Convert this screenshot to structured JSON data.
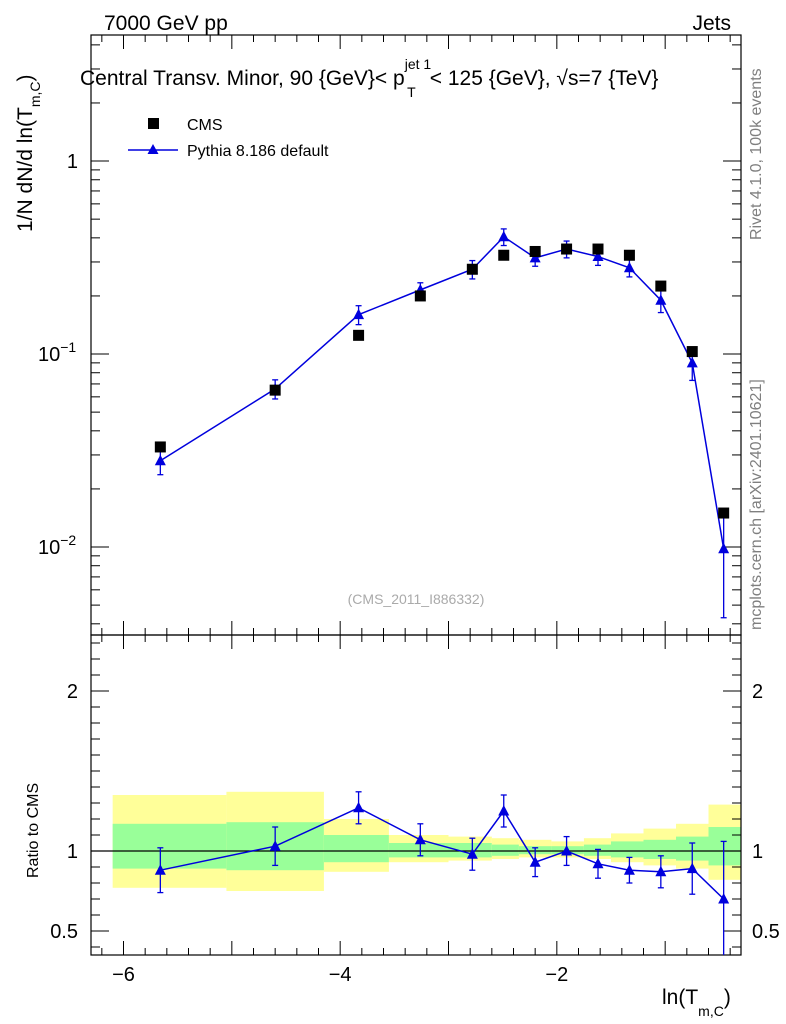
{
  "header": {
    "energy_label": "7000 GeV pp",
    "process_label": "Jets",
    "plot_title": "Central Transv. Minor, 90 {GeV}< p",
    "plot_title_sup": "jet 1",
    "plot_title_sub": "T",
    "plot_title_tail": "< 125 {GeV}, √s=7 {TeV}",
    "side_label_top": "Rivet 4.1.0,  100k events",
    "side_label_bottom": "mcplots.cern.ch [arXiv:2401.10621]",
    "analysis_id": "(CMS_2011_I886332)"
  },
  "colors": {
    "data": "#000000",
    "mc": "#0000dd",
    "band_outer": "#ffff99",
    "band_inner": "#99ff99"
  },
  "chart_data": [
    {
      "type": "scatter",
      "title": "Central Transv. Minor",
      "ylabel_prefix": "1/N    dN/d ln(T",
      "ylabel_sub": "m,C",
      "ylabel_suffix": ")",
      "yscale": "log",
      "ylim": [
        0.0035,
        4.5
      ],
      "xlim": [
        -6.3,
        -0.3
      ],
      "yticks": [
        {
          "value": 0.01,
          "base": "10",
          "exp": "−2"
        },
        {
          "value": 0.1,
          "base": "10",
          "exp": "−1"
        },
        {
          "value": 1,
          "base": "1",
          "exp": ""
        }
      ],
      "legend": {
        "position": "top-left",
        "data_label": "CMS",
        "mc_label": "Pythia 8.186 default"
      },
      "series": [
        {
          "name": "CMS",
          "x": [
            -5.66,
            -4.6,
            -3.83,
            -3.26,
            -2.78,
            -2.49,
            -2.2,
            -1.91,
            -1.62,
            -1.33,
            -1.04,
            -0.75,
            -0.46
          ],
          "y": [
            0.033,
            0.065,
            0.125,
            0.2,
            0.275,
            0.325,
            0.34,
            0.35,
            0.35,
            0.325,
            0.225,
            0.103,
            0.015
          ]
        },
        {
          "name": "Pythia 8.186 default",
          "x": [
            -5.66,
            -4.6,
            -3.83,
            -3.26,
            -2.78,
            -2.49,
            -2.2,
            -1.91,
            -1.62,
            -1.33,
            -1.04,
            -0.75,
            -0.46
          ],
          "y": [
            0.028,
            0.066,
            0.16,
            0.215,
            0.275,
            0.405,
            0.315,
            0.35,
            0.32,
            0.28,
            0.19,
            0.09,
            0.0098
          ],
          "err_low": [
            0.0043,
            0.0075,
            0.018,
            0.019,
            0.03,
            0.04,
            0.03,
            0.035,
            0.032,
            0.029,
            0.026,
            0.017,
            0.0055
          ],
          "err_high": [
            0.0043,
            0.0075,
            0.018,
            0.019,
            0.03,
            0.04,
            0.03,
            0.035,
            0.032,
            0.029,
            0.026,
            0.017,
            0.0055
          ]
        }
      ]
    },
    {
      "type": "scatter",
      "title": "Ratio",
      "ylabel": "Ratio to CMS",
      "xlabel_prefix": "ln(T",
      "xlabel_sub": "m,C",
      "xlabel_suffix": ")",
      "xlim": [
        -6.3,
        -0.3
      ],
      "ylim": [
        0.35,
        2.35
      ],
      "yticks": [
        0.5,
        1,
        2
      ],
      "xticks": [
        -6,
        -4,
        -2
      ],
      "xtick_labels": [
        "−6",
        "−4",
        "−2"
      ],
      "band_edges": [
        -6.1,
        -5.05,
        -4.15,
        -3.55,
        -3.0,
        -2.6,
        -2.35,
        -2.05,
        -1.75,
        -1.5,
        -1.2,
        -0.9,
        -0.6,
        -0.3
      ],
      "band_outer": [
        [
          0.77,
          1.35
        ],
        [
          0.75,
          1.37
        ],
        [
          0.87,
          1.2
        ],
        [
          0.93,
          1.1
        ],
        [
          0.94,
          1.09
        ],
        [
          0.95,
          1.08
        ],
        [
          0.96,
          1.07
        ],
        [
          0.96,
          1.06
        ],
        [
          0.95,
          1.08
        ],
        [
          0.93,
          1.11
        ],
        [
          0.91,
          1.14
        ],
        [
          0.89,
          1.17
        ],
        [
          0.82,
          1.29
        ]
      ],
      "band_inner": [
        [
          0.89,
          1.17
        ],
        [
          0.88,
          1.18
        ],
        [
          0.93,
          1.1
        ],
        [
          0.96,
          1.05
        ],
        [
          0.96,
          1.05
        ],
        [
          0.97,
          1.04
        ],
        [
          0.98,
          1.03
        ],
        [
          0.98,
          1.03
        ],
        [
          0.97,
          1.04
        ],
        [
          0.96,
          1.06
        ],
        [
          0.95,
          1.07
        ],
        [
          0.94,
          1.09
        ],
        [
          0.91,
          1.15
        ]
      ],
      "series": [
        {
          "name": "Pythia 8.186 default / CMS",
          "x": [
            -5.66,
            -4.6,
            -3.83,
            -3.26,
            -2.78,
            -2.49,
            -2.2,
            -1.91,
            -1.62,
            -1.33,
            -1.04,
            -0.75,
            -0.46
          ],
          "y": [
            0.88,
            1.03,
            1.27,
            1.07,
            0.98,
            1.25,
            0.93,
            1.0,
            0.92,
            0.88,
            0.87,
            0.89,
            0.7
          ],
          "err_low": [
            0.14,
            0.12,
            0.1,
            0.1,
            0.1,
            0.1,
            0.09,
            0.09,
            0.09,
            0.08,
            0.1,
            0.16,
            0.38
          ],
          "err_high": [
            0.14,
            0.12,
            0.1,
            0.1,
            0.1,
            0.1,
            0.09,
            0.09,
            0.09,
            0.08,
            0.1,
            0.16,
            0.36
          ]
        }
      ]
    }
  ]
}
